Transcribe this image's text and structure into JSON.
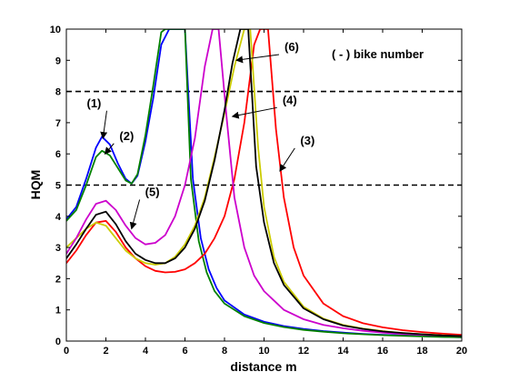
{
  "chart_data": {
    "type": "line",
    "xlabel": "distance m",
    "ylabel": "HQM",
    "xlim": [
      0,
      20
    ],
    "ylim": [
      0,
      10
    ],
    "xticks": [
      0,
      2,
      4,
      6,
      8,
      10,
      12,
      14,
      16,
      18,
      20
    ],
    "yticks": [
      0,
      1,
      2,
      3,
      4,
      5,
      6,
      7,
      8,
      9,
      10
    ],
    "grid": false,
    "legend_note": "( - ) bike number",
    "thresholds": [
      {
        "y": 5,
        "style": "dashed",
        "color": "#000000"
      },
      {
        "y": 8,
        "style": "dashed",
        "color": "#000000"
      }
    ],
    "series": [
      {
        "name": "(1)",
        "color": "#0000ff",
        "x": [
          0,
          0.5,
          1.0,
          1.5,
          1.8,
          2.2,
          2.6,
          3.0,
          3.3,
          3.6,
          4.0,
          4.4,
          4.8,
          5.2,
          5.6,
          6.0,
          6.4,
          6.8,
          7.2,
          7.6,
          8.0,
          9.0,
          10.0,
          11.0,
          12.0,
          13.0,
          14.0,
          15.0,
          16.0,
          17.0,
          18.0,
          19.0,
          20.0
        ],
        "y": [
          3.9,
          4.3,
          5.2,
          6.2,
          6.55,
          6.3,
          5.7,
          5.2,
          5.05,
          5.3,
          6.4,
          7.8,
          9.5,
          10,
          10,
          10,
          5.2,
          3.3,
          2.3,
          1.7,
          1.3,
          0.85,
          0.62,
          0.48,
          0.39,
          0.32,
          0.27,
          0.23,
          0.2,
          0.18,
          0.16,
          0.14,
          0.12
        ]
      },
      {
        "name": "(2)",
        "color": "#008000",
        "x": [
          0,
          0.5,
          1.0,
          1.5,
          1.8,
          2.2,
          2.6,
          3.0,
          3.3,
          3.6,
          4.0,
          4.4,
          4.8,
          5.0,
          5.6,
          6.0,
          6.3,
          6.7,
          7.1,
          7.5,
          8.0,
          9.0,
          10.0,
          11.0,
          12.0,
          13.0,
          14.0,
          15.0,
          16.0,
          17.0,
          18.0,
          19.0,
          20.0
        ],
        "y": [
          3.85,
          4.2,
          5.0,
          5.9,
          6.1,
          5.95,
          5.55,
          5.15,
          5.05,
          5.35,
          6.6,
          8.2,
          9.9,
          10,
          10,
          10,
          5.2,
          3.2,
          2.2,
          1.6,
          1.2,
          0.8,
          0.58,
          0.45,
          0.36,
          0.3,
          0.25,
          0.22,
          0.19,
          0.17,
          0.15,
          0.13,
          0.12
        ]
      },
      {
        "name": "(3)",
        "color": "#ff0000",
        "x": [
          0,
          0.5,
          1.0,
          1.5,
          2.0,
          2.5,
          3.0,
          3.5,
          4.0,
          4.5,
          5.0,
          5.5,
          6.0,
          6.5,
          7.0,
          7.5,
          8.0,
          8.5,
          9.0,
          9.5,
          9.8,
          10.2,
          10.6,
          11.0,
          11.5,
          12.0,
          13.0,
          14.0,
          15.0,
          16.0,
          17.0,
          18.0,
          19.0,
          20.0
        ],
        "y": [
          2.5,
          2.9,
          3.4,
          3.8,
          3.85,
          3.5,
          3.0,
          2.65,
          2.4,
          2.25,
          2.2,
          2.22,
          2.3,
          2.5,
          2.8,
          3.3,
          4.0,
          5.2,
          7.0,
          9.5,
          10,
          10,
          6.8,
          4.6,
          3.0,
          2.1,
          1.2,
          0.8,
          0.57,
          0.44,
          0.35,
          0.29,
          0.24,
          0.2
        ]
      },
      {
        "name": "(4)",
        "color": "#cccc00",
        "x": [
          0,
          0.5,
          1.0,
          1.5,
          2.0,
          2.5,
          3.0,
          3.5,
          4.0,
          4.5,
          5.0,
          5.5,
          6.0,
          6.5,
          7.0,
          7.5,
          8.0,
          8.5,
          9.0,
          9.3,
          9.7,
          10.0,
          10.5,
          11.0,
          12.0,
          13.0,
          14.0,
          15.0,
          16.0,
          17.0,
          18.0,
          19.0,
          20.0
        ],
        "y": [
          3.0,
          3.3,
          3.6,
          3.8,
          3.7,
          3.3,
          2.9,
          2.65,
          2.5,
          2.45,
          2.5,
          2.7,
          3.1,
          3.7,
          4.6,
          5.9,
          7.3,
          8.8,
          10,
          10,
          6.2,
          4.3,
          2.7,
          1.9,
          1.1,
          0.72,
          0.52,
          0.4,
          0.32,
          0.26,
          0.22,
          0.19,
          0.16
        ]
      },
      {
        "name": "(5)",
        "color": "#cc00cc",
        "x": [
          0,
          0.5,
          1.0,
          1.5,
          2.0,
          2.5,
          3.0,
          3.5,
          4.0,
          4.5,
          5.0,
          5.5,
          6.0,
          6.5,
          7.0,
          7.4,
          7.7,
          8.1,
          8.5,
          9.0,
          9.5,
          10.0,
          11.0,
          12.0,
          13.0,
          14.0,
          15.0,
          16.0,
          17.0,
          18.0,
          19.0,
          20.0
        ],
        "y": [
          2.8,
          3.3,
          3.9,
          4.4,
          4.5,
          4.2,
          3.7,
          3.3,
          3.1,
          3.15,
          3.4,
          4.0,
          5.0,
          6.5,
          8.8,
          10,
          10,
          7.2,
          4.6,
          3.0,
          2.1,
          1.6,
          1.0,
          0.7,
          0.52,
          0.41,
          0.33,
          0.27,
          0.23,
          0.2,
          0.18,
          0.16
        ]
      },
      {
        "name": "(6)",
        "color": "#000000",
        "x": [
          0,
          0.5,
          1.0,
          1.5,
          2.0,
          2.5,
          3.0,
          3.5,
          4.0,
          4.5,
          5.0,
          5.5,
          6.0,
          6.5,
          7.0,
          7.5,
          8.0,
          8.4,
          8.8,
          9.2,
          9.6,
          10.0,
          10.5,
          11.0,
          12.0,
          13.0,
          14.0,
          15.0,
          16.0,
          17.0,
          18.0,
          19.0,
          20.0
        ],
        "y": [
          2.65,
          3.1,
          3.6,
          4.05,
          4.15,
          3.75,
          3.2,
          2.8,
          2.6,
          2.5,
          2.5,
          2.65,
          3.0,
          3.6,
          4.5,
          5.8,
          7.4,
          8.9,
          10,
          10,
          5.6,
          3.8,
          2.5,
          1.8,
          1.05,
          0.7,
          0.5,
          0.39,
          0.31,
          0.26,
          0.22,
          0.18,
          0.16
        ]
      }
    ],
    "annotations": [
      {
        "label": "(1)",
        "tx": 1.4,
        "ty": 7.5,
        "ax": 1.85,
        "ay": 6.5
      },
      {
        "label": "(2)",
        "tx": 3.05,
        "ty": 6.45,
        "ax": 1.95,
        "ay": 6.0
      },
      {
        "label": "(3)",
        "tx": 12.2,
        "ty": 6.3,
        "ax": 10.8,
        "ay": 5.45
      },
      {
        "label": "(4)",
        "tx": 11.3,
        "ty": 7.6,
        "ax": 8.4,
        "ay": 7.2
      },
      {
        "label": "(5)",
        "tx": 4.35,
        "ty": 4.65,
        "ax": 3.3,
        "ay": 3.6
      },
      {
        "label": "(6)",
        "tx": 11.4,
        "ty": 9.3,
        "ax": 8.6,
        "ay": 9.0
      }
    ]
  }
}
